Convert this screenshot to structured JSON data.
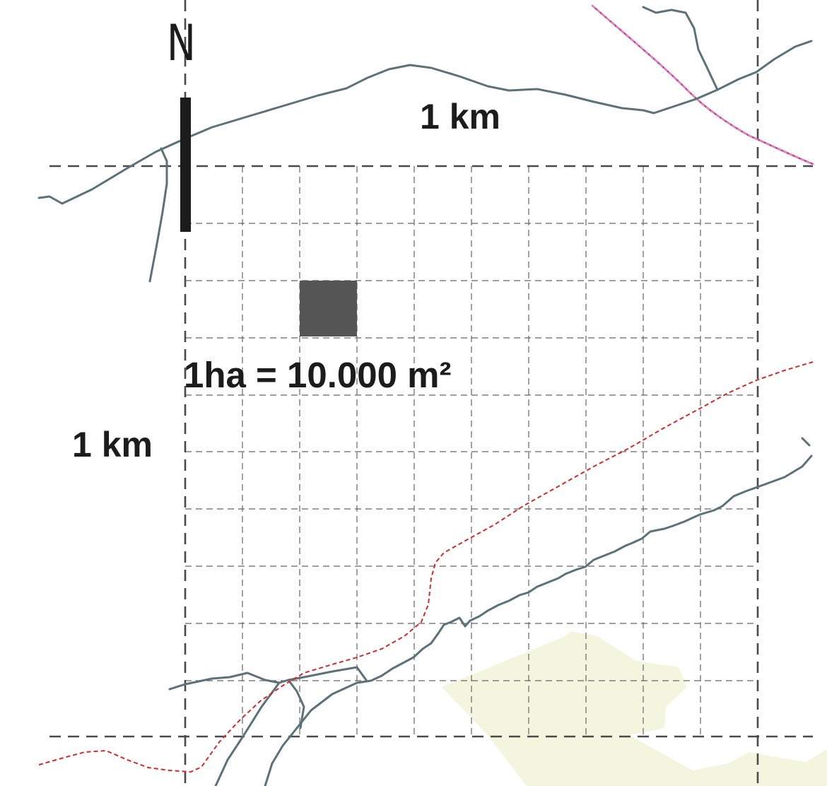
{
  "labels": {
    "north": "N",
    "scale_horizontal": "1 km",
    "scale_vertical": "1 km",
    "area_equivalence": "1ha = 10.000 m²"
  },
  "colors": {
    "road": "#5c7278",
    "railway": "#d8282a",
    "boundary": "#d23c9c",
    "hectare_square": "#555555",
    "built_area": "#f4f5df",
    "grid": "#5a5a5a",
    "north_arrow": "#1c1c1c"
  },
  "grid": {
    "km_extent": "1 km",
    "cells_per_side": 10,
    "cell_area": "1ha = 10.000 m²"
  }
}
